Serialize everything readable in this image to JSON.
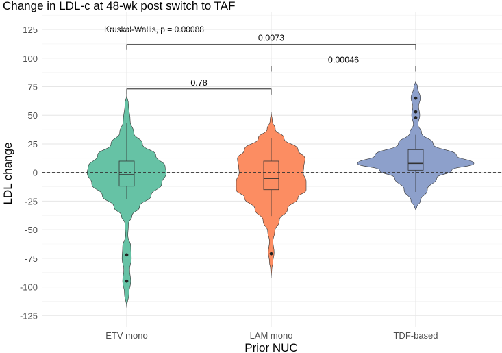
{
  "chart_data": {
    "type": "violin",
    "title": "Change in LDL-c at 48-wk post switch to TAF",
    "xlabel": "Prior NUC",
    "ylabel": "LDL change",
    "ylim": [
      -135,
      140
    ],
    "yticks": [
      -125,
      -100,
      -75,
      -50,
      -25,
      0,
      25,
      50,
      75,
      100,
      125
    ],
    "grid": true,
    "reference_line": 0,
    "categories": [
      "ETV mono",
      "LAM mono",
      "TDF-based"
    ],
    "colors": [
      "#66c2a5",
      "#fc8d62",
      "#8da0cb"
    ],
    "annotation": "Kruskal-Wallis, p = 0.00088",
    "annotation_y": 130,
    "comparisons": [
      {
        "from": 0,
        "to": 1,
        "label": "0.78",
        "y": 73
      },
      {
        "from": 1,
        "to": 2,
        "label": "0.00046",
        "y": 93
      },
      {
        "from": 0,
        "to": 2,
        "label": "0.0073",
        "y": 112
      }
    ],
    "groups": [
      {
        "name": "ETV mono",
        "box": {
          "whisker_low": -23,
          "q1": -12,
          "median": -2,
          "q3": 10,
          "whisker_high": 43
        },
        "outliers": [
          -72,
          -95
        ],
        "density": [
          [
            68,
            0
          ],
          [
            60,
            0.03
          ],
          [
            45,
            0.06
          ],
          [
            35,
            0.12
          ],
          [
            25,
            0.27
          ],
          [
            15,
            0.5
          ],
          [
            5,
            0.66
          ],
          [
            0,
            0.68
          ],
          [
            -10,
            0.6
          ],
          [
            -20,
            0.42
          ],
          [
            -30,
            0.22
          ],
          [
            -38,
            0.09
          ],
          [
            -45,
            0.03
          ],
          [
            -55,
            0.02
          ],
          [
            -65,
            0.07
          ],
          [
            -75,
            0.08
          ],
          [
            -85,
            0.05
          ],
          [
            -95,
            0.07
          ],
          [
            -105,
            0.04
          ],
          [
            -118,
            0
          ]
        ]
      },
      {
        "name": "LAM mono",
        "box": {
          "whisker_low": -38,
          "q1": -15,
          "median": -5,
          "q3": 10,
          "whisker_high": 30
        },
        "outliers": [
          -71
        ],
        "density": [
          [
            53,
            0
          ],
          [
            45,
            0.02
          ],
          [
            38,
            0.07
          ],
          [
            30,
            0.22
          ],
          [
            20,
            0.46
          ],
          [
            12,
            0.58
          ],
          [
            5,
            0.56
          ],
          [
            0,
            0.55
          ],
          [
            -8,
            0.6
          ],
          [
            -15,
            0.6
          ],
          [
            -22,
            0.46
          ],
          [
            -32,
            0.28
          ],
          [
            -42,
            0.14
          ],
          [
            -52,
            0.06
          ],
          [
            -60,
            0.03
          ],
          [
            -70,
            0.05
          ],
          [
            -78,
            0.03
          ],
          [
            -85,
            0.01
          ],
          [
            -92,
            0
          ]
        ]
      },
      {
        "name": "TDF-based",
        "box": {
          "whisker_low": -17,
          "q1": 2,
          "median": 8,
          "q3": 20,
          "whisker_high": 33
        },
        "outliers": [
          65,
          53,
          48
        ],
        "density": [
          [
            80,
            0
          ],
          [
            75,
            0.03
          ],
          [
            65,
            0.08
          ],
          [
            58,
            0.05
          ],
          [
            50,
            0.07
          ],
          [
            42,
            0.04
          ],
          [
            35,
            0.1
          ],
          [
            25,
            0.3
          ],
          [
            15,
            0.7
          ],
          [
            8,
            1.0
          ],
          [
            2,
            0.62
          ],
          [
            -5,
            0.36
          ],
          [
            -15,
            0.2
          ],
          [
            -25,
            0.08
          ],
          [
            -30,
            0.02
          ],
          [
            -33,
            0
          ]
        ]
      }
    ]
  }
}
